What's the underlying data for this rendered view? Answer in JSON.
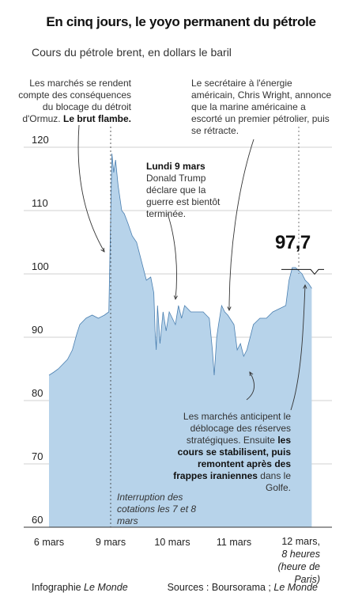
{
  "header": {
    "title": "En cinq jours, le yoyo permanent du pétrole",
    "subtitle": "Cours du pétrole brent, en dollars le baril"
  },
  "annotations": {
    "hormuz_text": "Les marchés se rendent compte des conséquences du blocage du détroit d'Ormuz.",
    "hormuz_bold": "Le brut flambe.",
    "wright": "Le secrétaire à l'énergie américain, Chris Wright, annonce que la marine américaine a escorté un premier pétrolier, puis se rétracte.",
    "trump_head": "Lundi 9 mars",
    "trump_text": "Donald Trump déclare que la guerre est bientôt terminée.",
    "reserves_a": "Les marchés anticipent le déblocage des réserves stratégiques. Ensuite",
    "reserves_bold": "les cours se stabilisent, puis remontent après des frappes iraniennes",
    "reserves_b": "dans le Golfe.",
    "interruption": "Interruption des cotations les 7 et 8 mars"
  },
  "last_value_label": "97,7",
  "footer": {
    "credit_prefix": "Infographie",
    "credit_name": "Le Monde",
    "sources_prefix": "Sources : Boursorama ;",
    "sources_name": "Le Monde"
  },
  "x_label_12": {
    "date": "12 mars,",
    "time": "8 heures",
    "tz": "(heure de Paris)"
  },
  "colors": {
    "area_fill": "#b7d3ea",
    "line": "#4a7fb0",
    "grid": "#d0d0d0",
    "text": "#1a1a1a"
  },
  "chart_data": {
    "type": "area",
    "title": "En cinq jours, le yoyo permanent du pétrole",
    "subtitle": "Cours du pétrole brent, en dollars le baril",
    "ylim": [
      60,
      122
    ],
    "yticks": [
      60,
      70,
      80,
      90,
      100,
      110,
      120
    ],
    "ytick_labels": [
      "60",
      "70",
      "80",
      "90",
      "100",
      "110",
      "120"
    ],
    "grid": true,
    "x_ticks": [
      {
        "x": 0,
        "label": "6 mars"
      },
      {
        "x": 1,
        "label": "9 mars"
      },
      {
        "x": 2,
        "label": "10 mars"
      },
      {
        "x": 3,
        "label": "11 mars"
      },
      {
        "x": 4,
        "label": "12 mars, 8 heures (heure de Paris)"
      }
    ],
    "x_range": [
      0,
      4.25
    ],
    "series": [
      {
        "x": [
          0,
          0.08,
          0.15,
          0.2,
          0.3,
          0.38,
          0.45,
          0.5,
          0.6,
          0.7,
          0.8,
          0.9,
          0.97,
          1.0,
          1.02,
          1.05,
          1.08,
          1.12,
          1.18,
          1.22,
          1.28,
          1.35,
          1.42,
          1.5,
          1.58,
          1.65,
          1.7,
          1.72,
          1.74,
          1.76,
          1.8,
          1.85,
          1.9,
          1.95,
          2.0,
          2.05,
          2.1,
          2.15,
          2.2,
          2.3,
          2.4,
          2.5,
          2.6,
          2.65,
          2.68,
          2.72,
          2.75,
          2.8,
          2.85,
          2.9,
          3.0,
          3.05,
          3.1,
          3.15,
          3.2,
          3.3,
          3.4,
          3.5,
          3.6,
          3.7,
          3.8,
          3.85,
          3.9,
          3.95,
          4.0,
          4.05,
          4.1,
          4.15,
          4.2
        ],
        "values": [
          84,
          84.5,
          85,
          85.5,
          86.5,
          88,
          90.5,
          92,
          93,
          93.5,
          93,
          93.5,
          94,
          109,
          119,
          116,
          118,
          114,
          110,
          109.5,
          108,
          106,
          105,
          102,
          99,
          99.5,
          97,
          91,
          88,
          95,
          89,
          94,
          91,
          94,
          93,
          92,
          95,
          93,
          95,
          94,
          94,
          94,
          93,
          88,
          84,
          90,
          92,
          95,
          94,
          93.5,
          92,
          88,
          89,
          87,
          88,
          92,
          93,
          93,
          94,
          94.5,
          95,
          99,
          101,
          101,
          100.5,
          100,
          99,
          98.5,
          97.7
        ]
      }
    ],
    "last_value": 97.7,
    "shaded_regions": [
      "interruption des cotations les 7 et 8 mars"
    ]
  }
}
